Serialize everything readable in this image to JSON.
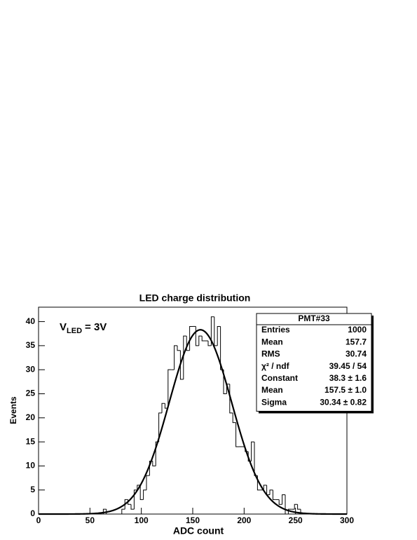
{
  "chart_data": {
    "type": "histogram",
    "title": "LED charge distribution",
    "x_label": "ADC count",
    "y_label": "Events",
    "annotation": {
      "main": "V",
      "sub": "LED",
      "rest": "= 3V"
    },
    "bins": [
      60,
      63,
      66,
      69,
      72,
      75,
      78,
      81,
      84,
      87,
      90,
      93,
      96,
      99,
      102,
      105,
      108,
      111,
      114,
      117,
      120,
      123,
      126,
      129,
      132,
      135,
      138,
      141,
      144,
      147,
      150,
      153,
      156,
      159,
      162,
      165,
      168,
      171,
      174,
      177,
      180,
      183,
      186,
      189,
      192,
      195,
      198,
      201,
      204,
      207,
      210,
      213,
      216,
      219,
      222,
      225,
      228,
      231,
      234,
      237,
      240,
      243,
      246,
      249,
      252,
      255
    ],
    "counts": [
      0,
      1,
      0,
      0,
      0,
      0,
      0,
      1,
      3,
      2,
      1,
      5,
      6,
      3,
      5,
      8,
      11,
      10,
      15,
      21,
      23,
      22,
      30,
      30,
      35,
      34,
      28,
      37,
      34,
      39,
      39,
      35,
      37,
      36,
      36,
      35,
      41,
      35,
      39,
      30,
      25,
      27,
      21,
      19,
      14,
      14,
      14,
      13,
      11,
      15,
      8,
      5,
      5,
      6,
      4,
      5,
      3,
      3,
      2,
      4,
      0,
      1,
      1,
      2,
      1
    ],
    "color": "#000000",
    "fit": {
      "constant": 38.3,
      "mean": 157.5,
      "sigma": 30.34
    },
    "stats": {
      "title": "PMT#33",
      "rows": [
        [
          "Entries",
          "1000"
        ],
        [
          "Mean",
          "157.7"
        ],
        [
          "RMS",
          "30.74"
        ],
        [
          "χ² / ndf",
          "39.45 / 54"
        ],
        [
          "Constant",
          "38.3 ± 1.6"
        ],
        [
          "Mean",
          "157.5 ± 1.0"
        ],
        [
          "Sigma",
          "30.34 ± 0.82"
        ]
      ]
    },
    "xlim": [
      0,
      300
    ],
    "xticks": [
      0,
      50,
      100,
      150,
      200,
      250,
      300
    ],
    "ylim": [
      0,
      43
    ],
    "yticks": [
      0,
      5,
      10,
      15,
      20,
      25,
      30,
      35,
      40
    ]
  }
}
